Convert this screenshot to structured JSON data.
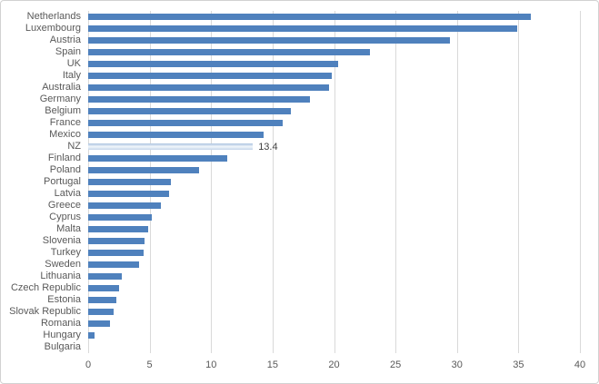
{
  "chart_data": {
    "type": "bar",
    "orientation": "horizontal",
    "title": "",
    "xlabel": "",
    "ylabel": "",
    "categories": [
      "Netherlands",
      "Luxembourg",
      "Austria",
      "Spain",
      "UK",
      "Italy",
      "Australia",
      "Germany",
      "Belgium",
      "France",
      "Mexico",
      "NZ",
      "Finland",
      "Poland",
      "Portugal",
      "Latvia",
      "Greece",
      "Cyprus",
      "Malta",
      "Slovenia",
      "Turkey",
      "Sweden",
      "Lithuania",
      "Czech Republic",
      "Estonia",
      "Slovak Republic",
      "Romania",
      "Hungary",
      "Bulgaria"
    ],
    "values": [
      36.0,
      34.9,
      29.4,
      22.9,
      20.3,
      19.8,
      19.6,
      18.0,
      16.5,
      15.8,
      14.3,
      13.4,
      11.3,
      9.0,
      6.7,
      6.6,
      5.9,
      5.2,
      4.9,
      4.6,
      4.5,
      4.1,
      2.7,
      2.5,
      2.3,
      2.1,
      1.8,
      0.5,
      0
    ],
    "highlight": {
      "category": "NZ",
      "value": 13.4,
      "value_label": "13.4"
    },
    "xlim": [
      0,
      40
    ],
    "xticks": [
      0,
      5,
      10,
      15,
      20,
      25,
      30,
      35,
      40
    ],
    "grid": true,
    "legend": "none",
    "colors": {
      "bar": "#4f81bd",
      "highlight_top": "#aac2df",
      "highlight_mid": "#f2f7fc",
      "highlight_bottom": "#c3d4e9",
      "gridline": "#d9d9d9",
      "axis_text": "#595959",
      "data_label_text": "#404040",
      "frame_border": "#d2d2d2",
      "background": "#ffffff"
    }
  }
}
